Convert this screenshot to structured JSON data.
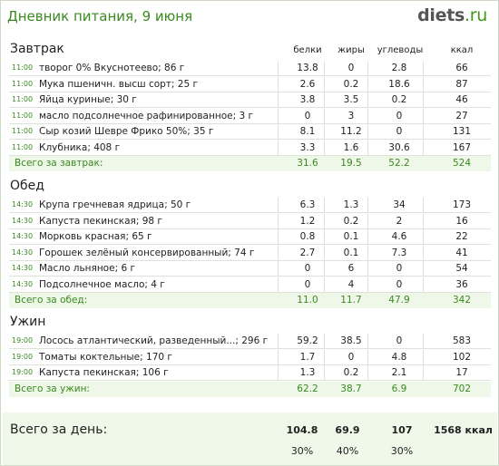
{
  "header": {
    "title": "Дневник питания, 9 июня",
    "logo_main": "diets",
    "logo_suffix": ".ru"
  },
  "columns": [
    "белки",
    "жиры",
    "углеводы",
    "ккал"
  ],
  "meals": [
    {
      "title": "Завтрак",
      "items": [
        {
          "time": "11:00",
          "name": "творог 0% Вкуснотеево; 86 г",
          "values": [
            "13.8",
            "0",
            "2.8",
            "66"
          ]
        },
        {
          "time": "11:00",
          "name": "Мука пшеничн. высш сорт; 25 г",
          "values": [
            "2.6",
            "0.2",
            "18.6",
            "87"
          ]
        },
        {
          "time": "11:00",
          "name": "Яйца куриные; 30 г",
          "values": [
            "3.8",
            "3.5",
            "0.2",
            "46"
          ]
        },
        {
          "time": "11:00",
          "name": "масло подсолнечное рафинированное; 3 г",
          "values": [
            "0",
            "3",
            "0",
            "27"
          ]
        },
        {
          "time": "11:00",
          "name": "Сыр козий Шевре Фрико 50%; 35 г",
          "values": [
            "8.1",
            "11.2",
            "0",
            "131"
          ]
        },
        {
          "time": "11:00",
          "name": "Клубника; 408 г",
          "values": [
            "3.3",
            "1.6",
            "30.6",
            "167"
          ]
        }
      ],
      "total_label": "Всего за завтрак:",
      "total": [
        "31.6",
        "19.5",
        "52.2",
        "524"
      ]
    },
    {
      "title": "Обед",
      "items": [
        {
          "time": "14:30",
          "name": "Крупа гречневая ядрица; 50 г",
          "values": [
            "6.3",
            "1.3",
            "34",
            "173"
          ]
        },
        {
          "time": "14:30",
          "name": "Капуста пекинская; 98 г",
          "values": [
            "1.2",
            "0.2",
            "2",
            "16"
          ]
        },
        {
          "time": "14:30",
          "name": "Морковь красная; 65 г",
          "values": [
            "0.8",
            "0.1",
            "4.6",
            "22"
          ]
        },
        {
          "time": "14:30",
          "name": "Горошек зелёный консервированный; 74 г",
          "values": [
            "2.7",
            "0.1",
            "7.3",
            "41"
          ]
        },
        {
          "time": "14:30",
          "name": "Масло льняное; 6 г",
          "values": [
            "0",
            "6",
            "0",
            "54"
          ]
        },
        {
          "time": "14:30",
          "name": "Подсолнечное масло; 4 г",
          "values": [
            "0",
            "4",
            "0",
            "36"
          ]
        }
      ],
      "total_label": "Всего за обед:",
      "total": [
        "11.0",
        "11.7",
        "47.9",
        "342"
      ]
    },
    {
      "title": "Ужин",
      "items": [
        {
          "time": "19:00",
          "name": "Лосось атлантический, разведенный...; 296 г",
          "values": [
            "59.2",
            "38.5",
            "0",
            "583"
          ]
        },
        {
          "time": "19:00",
          "name": "Томаты коктельные; 170 г",
          "values": [
            "1.7",
            "0",
            "4.8",
            "102"
          ]
        },
        {
          "time": "19:00",
          "name": "Капуста пекинская; 106 г",
          "values": [
            "1.3",
            "0.2",
            "2.1",
            "17"
          ]
        }
      ],
      "total_label": "Всего за ужин:",
      "total": [
        "62.2",
        "38.7",
        "6.9",
        "702"
      ]
    }
  ],
  "day": {
    "label": "Всего за день:",
    "values": [
      "104.8",
      "69.9",
      "107",
      "1568 ккал"
    ],
    "percents": [
      "30%",
      "40%",
      "30%"
    ]
  },
  "colors": {
    "accent": "#3a8a1f",
    "total_bg": "#eef7e8",
    "row_border": "#dde3d8"
  }
}
